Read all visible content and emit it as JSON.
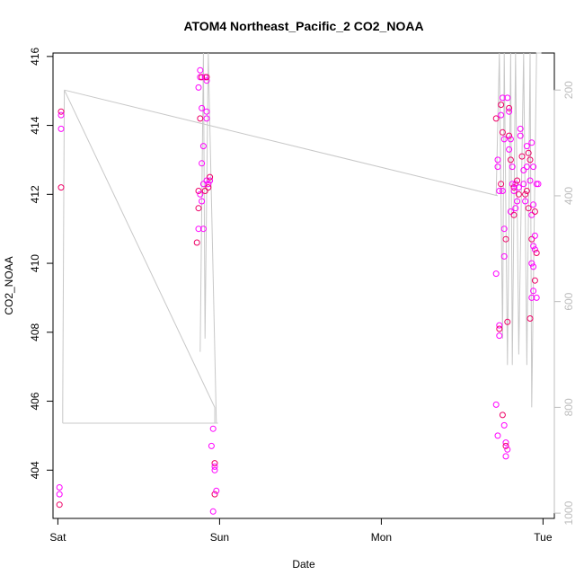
{
  "chart_data": {
    "type": "scatter",
    "title": "ATOM4 Northeast_Pacific_2 CO2_NOAA",
    "xlabel": "Date",
    "ylabel": "CO2_NOAA",
    "x_ticks": [
      "Sat",
      "Sun",
      "Mon",
      "Tue"
    ],
    "x_tick_values": [
      0,
      1,
      2,
      3
    ],
    "xlim": [
      -0.03,
      3.07
    ],
    "ylim": [
      402.6,
      416.1
    ],
    "y_ticks": [
      404,
      406,
      408,
      410,
      412,
      414,
      416
    ],
    "y2_ticks": [
      200,
      400,
      600,
      800,
      1000
    ],
    "y2lim": [
      1010,
      130
    ],
    "grid": false,
    "colors": {
      "points_light": "#ff00ff",
      "points_dark": "#ee0066",
      "altitude_line": "#c8c8c8",
      "right_axis": "#bdbdbd"
    },
    "series": [
      {
        "marker": "circle",
        "points": [
          [
            0.02,
            414.4
          ],
          [
            0.02,
            414.3
          ],
          [
            0.02,
            413.9
          ],
          [
            0.02,
            412.2
          ],
          [
            0.01,
            403.5
          ],
          [
            0.01,
            403.3
          ],
          [
            0.01,
            403.0
          ],
          [
            0.88,
            415.6
          ],
          [
            0.88,
            415.4
          ],
          [
            0.89,
            415.4
          ],
          [
            0.87,
            415.1
          ],
          [
            0.89,
            414.5
          ],
          [
            0.88,
            414.2
          ],
          [
            0.9,
            413.4
          ],
          [
            0.89,
            412.9
          ],
          [
            0.87,
            412.1
          ],
          [
            0.88,
            412.0
          ],
          [
            0.9,
            412.3
          ],
          [
            0.91,
            412.1
          ],
          [
            0.92,
            412.4
          ],
          [
            0.93,
            412.3
          ],
          [
            0.93,
            412.2
          ],
          [
            0.94,
            412.4
          ],
          [
            0.89,
            411.8
          ],
          [
            0.87,
            411.6
          ],
          [
            0.87,
            411.0
          ],
          [
            0.9,
            411.0
          ],
          [
            0.86,
            410.6
          ],
          [
            0.91,
            415.4
          ],
          [
            0.92,
            415.3
          ],
          [
            0.92,
            415.4
          ],
          [
            0.92,
            414.4
          ],
          [
            0.92,
            414.2
          ],
          [
            0.94,
            412.5
          ],
          [
            0.96,
            405.2
          ],
          [
            0.95,
            404.7
          ],
          [
            0.97,
            404.2
          ],
          [
            0.97,
            404.1
          ],
          [
            0.97,
            404.0
          ],
          [
            0.97,
            403.3
          ],
          [
            0.98,
            403.4
          ],
          [
            0.96,
            402.8
          ],
          [
            2.71,
            414.2
          ],
          [
            2.72,
            413.0
          ],
          [
            2.72,
            412.8
          ],
          [
            2.74,
            414.6
          ],
          [
            2.74,
            414.3
          ],
          [
            2.75,
            414.8
          ],
          [
            2.75,
            413.8
          ],
          [
            2.76,
            413.6
          ],
          [
            2.73,
            412.1
          ],
          [
            2.74,
            412.3
          ],
          [
            2.75,
            412.1
          ],
          [
            2.76,
            411.0
          ],
          [
            2.77,
            410.7
          ],
          [
            2.71,
            409.7
          ],
          [
            2.73,
            408.2
          ],
          [
            2.73,
            408.1
          ],
          [
            2.73,
            407.9
          ],
          [
            2.76,
            410.2
          ],
          [
            2.78,
            408.3
          ],
          [
            2.71,
            405.9
          ],
          [
            2.72,
            405.0
          ],
          [
            2.75,
            405.6
          ],
          [
            2.76,
            405.3
          ],
          [
            2.77,
            404.8
          ],
          [
            2.77,
            404.7
          ],
          [
            2.78,
            404.6
          ],
          [
            2.77,
            404.4
          ],
          [
            2.79,
            414.5
          ],
          [
            2.79,
            414.4
          ],
          [
            2.78,
            414.8
          ],
          [
            2.79,
            413.7
          ],
          [
            2.8,
            413.6
          ],
          [
            2.79,
            413.3
          ],
          [
            2.8,
            413.0
          ],
          [
            2.81,
            412.8
          ],
          [
            2.81,
            412.3
          ],
          [
            2.82,
            412.2
          ],
          [
            2.82,
            412.1
          ],
          [
            2.83,
            412.3
          ],
          [
            2.84,
            412.4
          ],
          [
            2.83,
            411.6
          ],
          [
            2.8,
            411.5
          ],
          [
            2.82,
            411.4
          ],
          [
            2.84,
            411.8
          ],
          [
            2.85,
            412.2
          ],
          [
            2.85,
            412.0
          ],
          [
            2.86,
            413.9
          ],
          [
            2.86,
            413.7
          ],
          [
            2.87,
            413.1
          ],
          [
            2.88,
            412.7
          ],
          [
            2.88,
            412.3
          ],
          [
            2.89,
            412.0
          ],
          [
            2.9,
            413.4
          ],
          [
            2.9,
            412.8
          ],
          [
            2.91,
            413.2
          ],
          [
            2.92,
            412.4
          ],
          [
            2.89,
            411.8
          ],
          [
            2.91,
            411.6
          ],
          [
            2.93,
            411.4
          ],
          [
            2.94,
            411.7
          ],
          [
            2.95,
            411.5
          ],
          [
            2.96,
            412.3
          ],
          [
            2.97,
            412.3
          ],
          [
            2.92,
            413.0
          ],
          [
            2.93,
            413.5
          ],
          [
            2.94,
            412.8
          ],
          [
            2.93,
            410.7
          ],
          [
            2.94,
            410.5
          ],
          [
            2.95,
            410.4
          ],
          [
            2.96,
            410.3
          ],
          [
            2.93,
            410.0
          ],
          [
            2.94,
            409.9
          ],
          [
            2.95,
            409.5
          ],
          [
            2.94,
            409.2
          ],
          [
            2.93,
            409.0
          ],
          [
            2.92,
            408.4
          ],
          [
            2.95,
            410.8
          ],
          [
            2.96,
            409.0
          ],
          [
            2.9,
            412.1
          ]
        ]
      }
    ]
  }
}
